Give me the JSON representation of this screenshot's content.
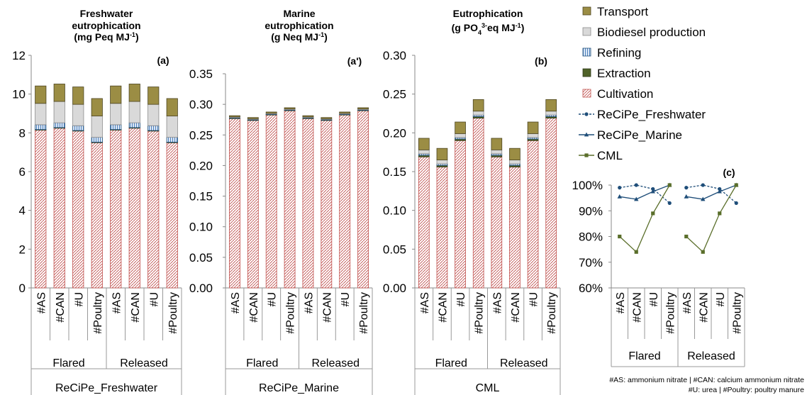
{
  "colors": {
    "transport": "#9b8d44",
    "biodiesel": "#d9d9d9",
    "refining": "#8db4e2",
    "extraction": "#4f6228",
    "cultivation": "#c0504d",
    "recipe_fresh": "#1f4e79",
    "recipe_marine": "#1f4e79",
    "cml": "#5a6e2a"
  },
  "legend": {
    "items": [
      {
        "key": "transport",
        "label": "Transport"
      },
      {
        "key": "biodiesel",
        "label": "Biodiesel production"
      },
      {
        "key": "refining",
        "label": "Refining"
      },
      {
        "key": "extraction",
        "label": "Extraction"
      },
      {
        "key": "cultivation",
        "label": "Cultivation"
      },
      {
        "key": "recipe_fresh",
        "label": "ReCiPe_Freshwater"
      },
      {
        "key": "recipe_marine",
        "label": "ReCiPe_Marine"
      },
      {
        "key": "cml",
        "label": "CML"
      }
    ]
  },
  "footnote": {
    "line1": "#AS: ammonium nitrate | #CAN: calcium ammonium nitrate",
    "line2": "#U: urea | #Poultry: poultry manure"
  },
  "chart_data": [
    {
      "type": "bar",
      "stacked": true,
      "title_lines": [
        "Freshwater",
        "eutrophication",
        "(mg Peq MJ-1)"
      ],
      "tag": "(a)",
      "categories": [
        "#AS",
        "#CAN",
        "#U",
        "#Poultry",
        "#AS",
        "#CAN",
        "#U",
        "#Poultry"
      ],
      "groups": [
        "Flared",
        "Released"
      ],
      "xlabel": "ReCiPe_Freshwater",
      "ylim": [
        0,
        12
      ],
      "yticks": [
        "0",
        "2",
        "4",
        "6",
        "8",
        "10",
        "12"
      ],
      "series": [
        {
          "name": "Cultivation",
          "key": "cultivation",
          "values": [
            8.15,
            8.25,
            8.1,
            7.5,
            8.15,
            8.25,
            8.1,
            7.5
          ]
        },
        {
          "name": "Extraction",
          "key": "extraction",
          "values": [
            0.02,
            0.02,
            0.02,
            0.02,
            0.02,
            0.02,
            0.02,
            0.02
          ]
        },
        {
          "name": "Refining",
          "key": "refining",
          "values": [
            0.25,
            0.25,
            0.25,
            0.25,
            0.25,
            0.25,
            0.25,
            0.25
          ]
        },
        {
          "name": "Biodiesel production",
          "key": "biodiesel",
          "values": [
            1.1,
            1.1,
            1.1,
            1.1,
            1.1,
            1.1,
            1.1,
            1.1
          ]
        },
        {
          "name": "Transport",
          "key": "transport",
          "values": [
            0.9,
            0.9,
            0.9,
            0.9,
            0.9,
            0.9,
            0.9,
            0.9
          ]
        }
      ]
    },
    {
      "type": "bar",
      "stacked": true,
      "title_lines": [
        "Marine",
        "eutrophication",
        "(g Neq MJ-1)"
      ],
      "tag": "(a')",
      "categories": [
        "#AS",
        "#CAN",
        "#U",
        "#Poultry",
        "#AS",
        "#CAN",
        "#U",
        "#Poultry"
      ],
      "groups": [
        "Flared",
        "Released"
      ],
      "xlabel": "ReCiPe_Marine",
      "ylim": [
        0,
        0.35
      ],
      "yticks": [
        "0.00",
        "0.05",
        "0.10",
        "0.15",
        "0.20",
        "0.25",
        "0.30",
        "0.35"
      ],
      "series": [
        {
          "name": "Cultivation",
          "key": "cultivation",
          "values": [
            0.277,
            0.274,
            0.283,
            0.29,
            0.277,
            0.274,
            0.283,
            0.29
          ]
        },
        {
          "name": "Extraction",
          "key": "extraction",
          "values": [
            0.0005,
            0.0005,
            0.0005,
            0.0005,
            0.0005,
            0.0005,
            0.0005,
            0.0005
          ]
        },
        {
          "name": "Refining",
          "key": "refining",
          "values": [
            0.0008,
            0.0008,
            0.0008,
            0.0008,
            0.0008,
            0.0008,
            0.0008,
            0.0008
          ]
        },
        {
          "name": "Biodiesel production",
          "key": "biodiesel",
          "values": [
            0.0012,
            0.0012,
            0.0012,
            0.0012,
            0.0012,
            0.0012,
            0.0012,
            0.0012
          ]
        },
        {
          "name": "Transport",
          "key": "transport",
          "values": [
            0.002,
            0.002,
            0.002,
            0.002,
            0.002,
            0.002,
            0.002,
            0.002
          ]
        }
      ]
    },
    {
      "type": "bar",
      "stacked": true,
      "title_lines": [
        "Eutrophication",
        "(g PO43-eq MJ-1)"
      ],
      "tag": "(b)",
      "categories": [
        "#AS",
        "#CAN",
        "#U",
        "#Poultry",
        "#AS",
        "#CAN",
        "#U",
        "#Poultry"
      ],
      "groups": [
        "Flared",
        "Released"
      ],
      "xlabel": "CML",
      "ylim": [
        0,
        0.3
      ],
      "yticks": [
        "0.00",
        "0.05",
        "0.10",
        "0.15",
        "0.20",
        "0.25",
        "0.30"
      ],
      "series": [
        {
          "name": "Cultivation",
          "key": "cultivation",
          "values": [
            0.169,
            0.156,
            0.19,
            0.219,
            0.169,
            0.156,
            0.19,
            0.219
          ]
        },
        {
          "name": "Extraction",
          "key": "extraction",
          "values": [
            0.002,
            0.002,
            0.002,
            0.002,
            0.002,
            0.002,
            0.002,
            0.002
          ]
        },
        {
          "name": "Refining",
          "key": "refining",
          "values": [
            0.002,
            0.002,
            0.002,
            0.002,
            0.002,
            0.002,
            0.002,
            0.002
          ]
        },
        {
          "name": "Biodiesel production",
          "key": "biodiesel",
          "values": [
            0.005,
            0.005,
            0.005,
            0.005,
            0.005,
            0.005,
            0.005,
            0.005
          ]
        },
        {
          "name": "Transport",
          "key": "transport",
          "values": [
            0.015,
            0.015,
            0.015,
            0.015,
            0.015,
            0.015,
            0.015,
            0.015
          ]
        }
      ]
    },
    {
      "type": "line",
      "tag": "(c)",
      "categories": [
        "#AS",
        "#CAN",
        "#U",
        "#Poultry",
        "#AS",
        "#CAN",
        "#U",
        "#Poultry"
      ],
      "groups": [
        "Flared",
        "Released"
      ],
      "ylim": [
        0.6,
        1.0
      ],
      "yticks": [
        "60%",
        "70%",
        "80%",
        "90%",
        "100%"
      ],
      "series": [
        {
          "name": "ReCiPe_Freshwater",
          "key": "recipe_fresh",
          "dashed": true,
          "marker": "circle",
          "values": [
            0.99,
            1.0,
            0.985,
            0.93,
            0.99,
            1.0,
            0.985,
            0.93
          ]
        },
        {
          "name": "ReCiPe_Marine",
          "key": "recipe_marine",
          "dashed": false,
          "marker": "triangle",
          "values": [
            0.955,
            0.945,
            0.975,
            1.0,
            0.955,
            0.945,
            0.975,
            1.0
          ]
        },
        {
          "name": "CML",
          "key": "cml",
          "dashed": false,
          "marker": "square",
          "values": [
            0.8,
            0.74,
            0.89,
            1.0,
            0.8,
            0.74,
            0.89,
            1.0
          ]
        }
      ]
    }
  ]
}
